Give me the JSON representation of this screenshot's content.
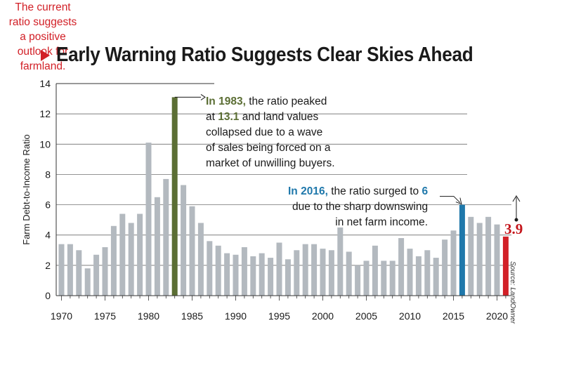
{
  "title": "Early Warning Ratio Suggests Clear Skies Ahead",
  "chart_data": {
    "type": "bar",
    "title": "Early Warning Ratio Suggests Clear Skies Ahead",
    "ylabel": "Farm Debt-to-Income Ratio",
    "xlabel": "",
    "ylim": [
      0,
      14
    ],
    "yticks": [
      0,
      2,
      4,
      6,
      8,
      10,
      12,
      14
    ],
    "xticks": [
      1970,
      1975,
      1980,
      1985,
      1990,
      1995,
      2000,
      2005,
      2010,
      2015,
      2020
    ],
    "x": [
      1970,
      1971,
      1972,
      1973,
      1974,
      1975,
      1976,
      1977,
      1978,
      1979,
      1980,
      1981,
      1982,
      1983,
      1984,
      1985,
      1986,
      1987,
      1988,
      1989,
      1990,
      1991,
      1992,
      1993,
      1994,
      1995,
      1996,
      1997,
      1998,
      1999,
      2000,
      2001,
      2002,
      2003,
      2004,
      2005,
      2006,
      2007,
      2008,
      2009,
      2010,
      2011,
      2012,
      2013,
      2014,
      2015,
      2016,
      2017,
      2018,
      2019,
      2020,
      2021
    ],
    "values": [
      3.4,
      3.4,
      3.0,
      1.8,
      2.7,
      3.2,
      4.6,
      5.4,
      4.8,
      5.4,
      10.1,
      6.5,
      7.7,
      13.1,
      7.3,
      5.9,
      4.8,
      3.6,
      3.3,
      2.8,
      2.7,
      3.2,
      2.6,
      2.8,
      2.5,
      3.5,
      2.4,
      3.0,
      3.4,
      3.4,
      3.1,
      3.0,
      4.5,
      2.9,
      2.0,
      2.3,
      3.3,
      2.3,
      2.3,
      3.8,
      3.1,
      2.6,
      3.0,
      2.5,
      3.7,
      4.3,
      6.0,
      5.2,
      4.8,
      5.2,
      4.7,
      3.9
    ],
    "highlights": [
      {
        "year": 1983,
        "color": "#5b6e34"
      },
      {
        "year": 2016,
        "color": "#1f78ab"
      },
      {
        "year": 2021,
        "color": "#d22027"
      }
    ],
    "bar_color": "#b3b9bf",
    "grid": true
  },
  "annotations": {
    "a1983": {
      "prefix": "In ",
      "year": "1983,",
      "text1": " the ratio peaked",
      "text2": "at ",
      "value": "13.1",
      "text3": " and land values",
      "line3": "collapsed due to a wave",
      "line4": "of sales being forced on a",
      "line5": "market of unwilling buyers."
    },
    "a2016": {
      "prefix": "In ",
      "year": "2016,",
      "text1": " the ratio surged to ",
      "value": "6",
      "line2": "due to the sharp downswing",
      "line3": "in net farm income."
    },
    "current": {
      "line1": "The current",
      "line2": "ratio suggests",
      "line3": "a positive",
      "line4": "outlook for",
      "line5": "farmland.",
      "value": "3.9"
    }
  },
  "source": "Source: LandOwner"
}
